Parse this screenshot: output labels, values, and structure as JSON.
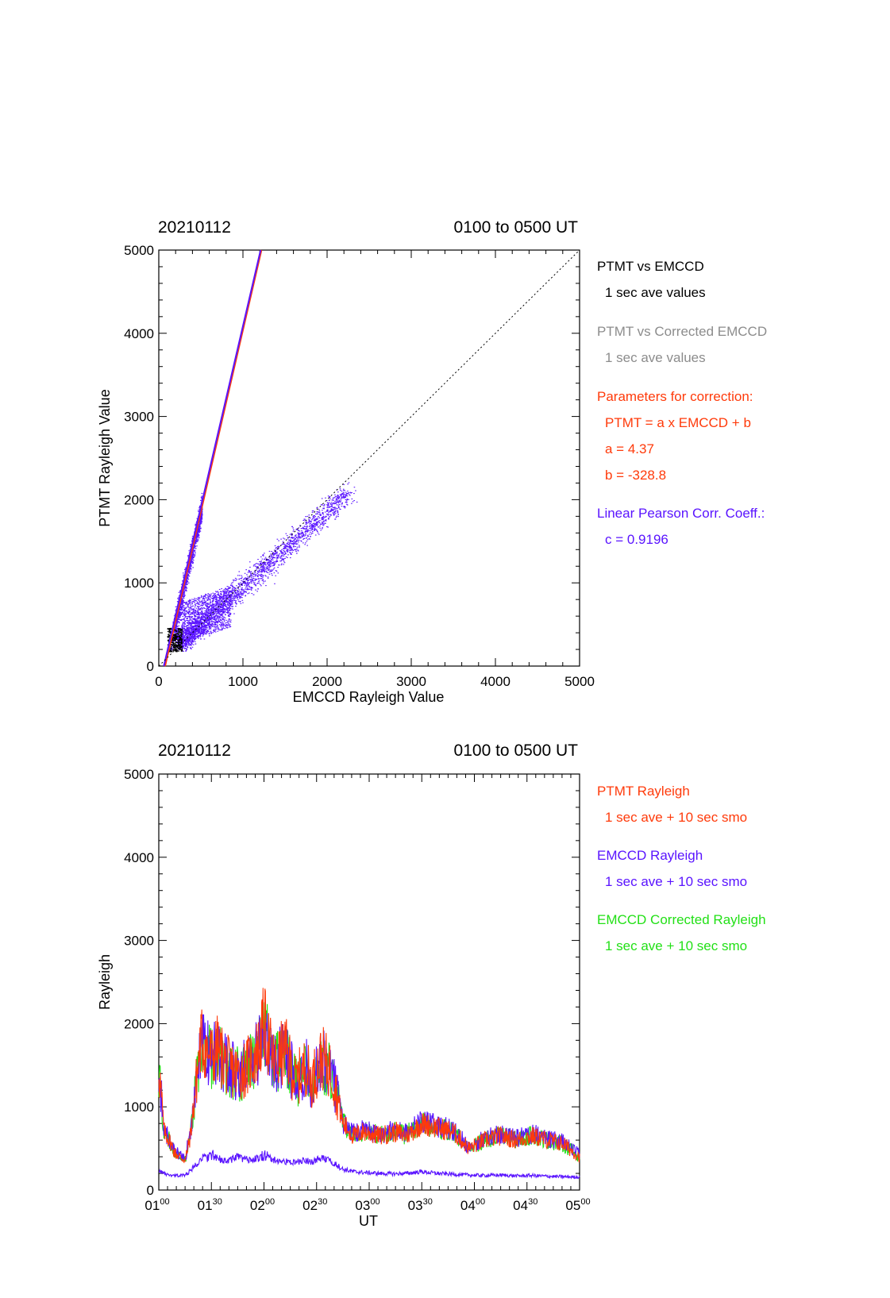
{
  "colors": {
    "black": "#000000",
    "gray": "#8c8c8c",
    "red": "#ff3a0a",
    "blue": "#5a14ff",
    "green": "#22e016"
  },
  "top_panel": {
    "date": "20210112",
    "time_range": "0100 to 0500 UT",
    "legend": {
      "l1": "PTMT vs EMCCD",
      "l2": "1 sec ave values",
      "l3": "PTMT vs Corrected EMCCD",
      "l4": "1 sec ave values",
      "l5": "Parameters for correction:",
      "l6": "PTMT = a x EMCCD + b",
      "l7": "a = 4.37",
      "l8": "b = -328.8",
      "l9": "Linear Pearson Corr. Coeff.:",
      "l10": "c = 0.9196"
    }
  },
  "bottom_panel": {
    "date": "20210112",
    "time_range": "0100 to 0500 UT",
    "legend": {
      "l1": "PTMT Rayleigh",
      "l2": "1 sec ave + 10 sec smo",
      "l3": "EMCCD Rayleigh",
      "l4": "1 sec ave + 10 sec smo",
      "l5": "EMCCD Corrected Rayleigh",
      "l6": "1 sec ave + 10 sec smo"
    }
  },
  "chart_data": [
    {
      "type": "scatter",
      "title": "",
      "xlabel": "EMCCD Rayleigh Value",
      "ylabel": "PTMT Rayleigh Value",
      "xlim": [
        0,
        5000
      ],
      "ylim": [
        0,
        5000
      ],
      "xticks": [
        "0",
        "1000",
        "2000",
        "3000",
        "4000",
        "5000"
      ],
      "yticks": [
        "0",
        "1000",
        "2000",
        "3000",
        "4000",
        "5000"
      ],
      "grid": false,
      "legend_placement": "right",
      "series": [
        {
          "name": "PTMT vs EMCCD",
          "color": "#000000",
          "points": [
            [
              100,
              220
            ],
            [
              130,
              300
            ],
            [
              160,
              380
            ],
            [
              200,
              420
            ],
            [
              230,
              260
            ],
            [
              250,
              440
            ]
          ]
        },
        {
          "name": "PTMT vs Corrected EMCCD",
          "color": "#8c8c8c",
          "points": []
        },
        {
          "name": "",
          "color": "#5a14ff",
          "clusters": [
            {
              "x_range": [
                120,
                500
              ],
              "y_range": [
                300,
                2500
              ],
              "trend": "steep"
            },
            {
              "x_range": [
                200,
                2400
              ],
              "y_range": [
                300,
                2500
              ],
              "trend": "diagonal"
            }
          ],
          "sample": [
            [
              150,
              450
            ],
            [
              200,
              700
            ],
            [
              300,
              1100
            ],
            [
              400,
              1700
            ],
            [
              450,
              2100
            ],
            [
              500,
              2600
            ],
            [
              300,
              500
            ],
            [
              600,
              700
            ],
            [
              900,
              800
            ],
            [
              1200,
              1100
            ],
            [
              1500,
              1500
            ],
            [
              1800,
              1800
            ],
            [
              2100,
              2100
            ],
            [
              2300,
              2300
            ]
          ]
        }
      ],
      "lines": [
        {
          "name": "fit",
          "color": "#ff3a0a",
          "points": [
            [
              75,
              0
            ],
            [
              1220,
              5000
            ]
          ]
        },
        {
          "name": "fit",
          "color": "#5a14ff",
          "points": [
            [
              60,
              0
            ],
            [
              1210,
              5000
            ]
          ]
        },
        {
          "name": "1:1",
          "color": "#000000",
          "style": "dotted",
          "points": [
            [
              0,
              0
            ],
            [
              5000,
              5000
            ]
          ]
        }
      ]
    },
    {
      "type": "line",
      "title": "",
      "xlabel": "UT",
      "ylabel": "Rayleigh",
      "xlim": [
        1.0,
        5.0
      ],
      "ylim": [
        0,
        5000
      ],
      "xticks": [
        "01:00",
        "01:30",
        "02:00",
        "02:30",
        "03:00",
        "03:30",
        "04:00",
        "04:30",
        "05:00"
      ],
      "yticks": [
        "0",
        "1000",
        "2000",
        "3000",
        "4000",
        "5000"
      ],
      "grid": false,
      "legend_placement": "right",
      "series": [
        {
          "name": "PTMT Rayleigh",
          "color": "#ff3a0a",
          "x": [
            1.0,
            1.05,
            1.1,
            1.15,
            1.25,
            1.3,
            1.4,
            1.5,
            1.55,
            1.65,
            1.75,
            1.85,
            1.95,
            2.0,
            2.1,
            2.2,
            2.3,
            2.4,
            2.45,
            2.55,
            2.65,
            2.75,
            2.85,
            2.95,
            3.1,
            3.25,
            3.35,
            3.5,
            3.65,
            3.8,
            3.95,
            4.1,
            4.25,
            4.4,
            4.55,
            4.7,
            4.85,
            5.0
          ],
          "y": [
            1500,
            700,
            600,
            450,
            350,
            650,
            1800,
            1600,
            1700,
            1500,
            1400,
            1500,
            1700,
            2000,
            1500,
            1700,
            1300,
            1500,
            1300,
            1600,
            1400,
            800,
            650,
            700,
            650,
            700,
            650,
            800,
            750,
            700,
            500,
            600,
            650,
            600,
            650,
            600,
            550,
            400
          ]
        },
        {
          "name": "EMCCD Rayleigh",
          "color": "#5a14ff",
          "x": [
            1.0,
            1.05,
            1.1,
            1.15,
            1.25,
            1.3,
            1.4,
            1.5,
            1.55,
            1.65,
            1.75,
            1.85,
            1.95,
            2.0,
            2.1,
            2.2,
            2.3,
            2.4,
            2.45,
            2.55,
            2.65,
            2.75,
            2.85,
            2.95,
            3.1,
            3.25,
            3.35,
            3.5,
            3.65,
            3.8,
            3.95,
            4.1,
            4.25,
            4.4,
            4.55,
            4.7,
            4.85,
            5.0
          ],
          "y": [
            230,
            200,
            170,
            170,
            180,
            230,
            380,
            420,
            380,
            350,
            400,
            360,
            380,
            420,
            360,
            340,
            330,
            360,
            340,
            380,
            340,
            250,
            220,
            210,
            200,
            195,
            200,
            220,
            200,
            190,
            180,
            175,
            180,
            170,
            175,
            165,
            160,
            155
          ]
        },
        {
          "name": "EMCCD Rayleigh",
          "color": "#5a14ff",
          "x": [
            1.0,
            1.05,
            1.1,
            1.15,
            1.25,
            1.3,
            1.4,
            1.5,
            1.55,
            1.65,
            1.75,
            1.85,
            1.95,
            2.0,
            2.1,
            2.2,
            2.3,
            2.4,
            2.45,
            2.55,
            2.65,
            2.75,
            2.85,
            2.95,
            3.1,
            3.25,
            3.35,
            3.5,
            3.65,
            3.8,
            3.95,
            4.1,
            4.25,
            4.4,
            4.55,
            4.7,
            4.85,
            5.0
          ],
          "y": [
            1450,
            720,
            620,
            470,
            380,
            680,
            1750,
            1580,
            1680,
            1480,
            1400,
            1480,
            1680,
            1950,
            1500,
            1680,
            1300,
            1480,
            1300,
            1580,
            1380,
            820,
            680,
            720,
            680,
            720,
            680,
            820,
            770,
            720,
            520,
            620,
            680,
            620,
            680,
            620,
            570,
            420
          ]
        },
        {
          "name": "EMCCD Corrected Rayleigh",
          "color": "#22e016",
          "x": [
            1.0,
            1.05,
            1.1,
            1.15,
            1.25,
            1.3,
            1.4,
            1.5,
            1.55,
            1.65,
            1.75,
            1.85,
            1.95,
            2.0,
            2.1,
            2.2,
            2.3,
            2.4,
            2.45,
            2.55,
            2.65,
            2.75,
            2.85,
            2.95,
            3.1,
            3.25,
            3.35,
            3.5,
            3.65,
            3.8,
            3.95,
            4.1,
            4.25,
            4.4,
            4.55,
            4.7,
            4.85,
            5.0
          ],
          "y": [
            1430,
            700,
            600,
            450,
            360,
            660,
            1730,
            1560,
            1660,
            1460,
            1380,
            1460,
            1660,
            1930,
            1480,
            1660,
            1280,
            1460,
            1280,
            1560,
            1360,
            800,
            660,
            700,
            660,
            700,
            660,
            800,
            750,
            700,
            500,
            600,
            660,
            600,
            660,
            600,
            550,
            400
          ]
        }
      ]
    }
  ]
}
